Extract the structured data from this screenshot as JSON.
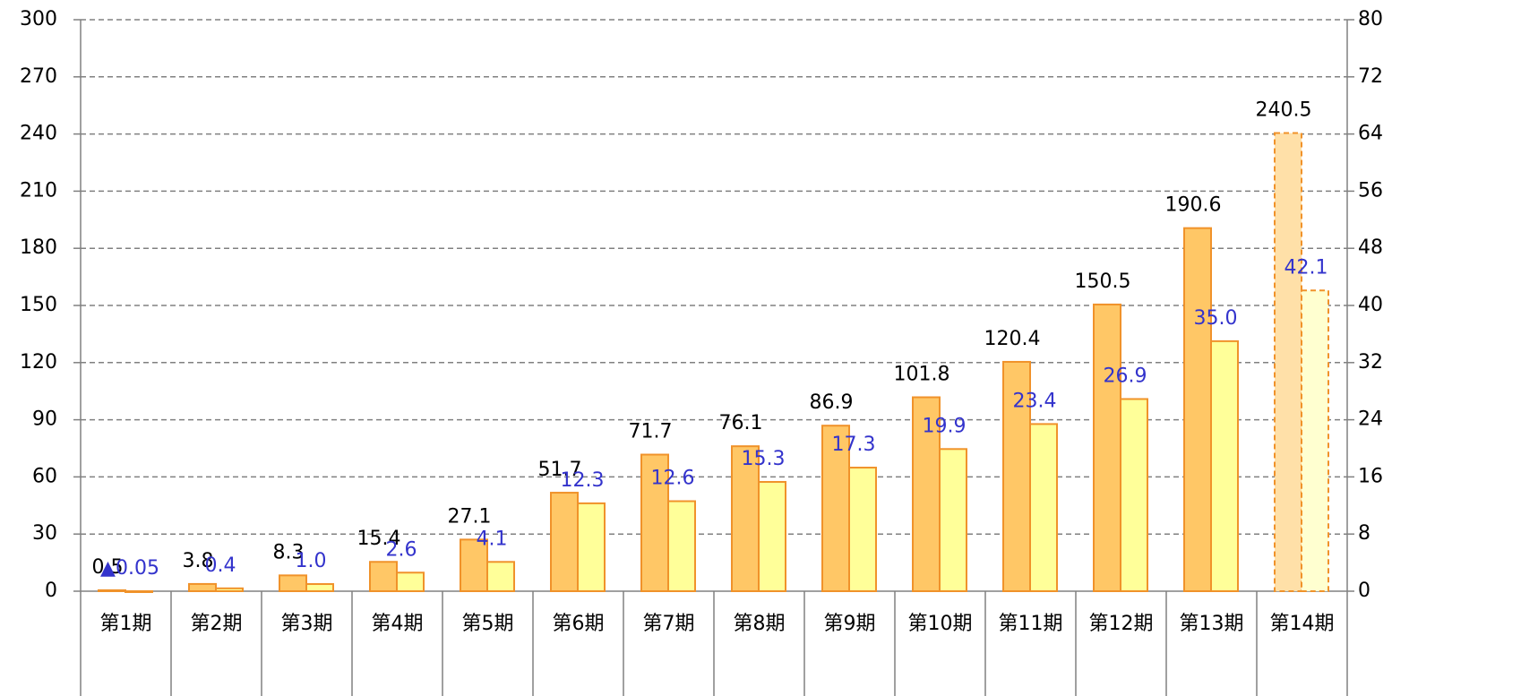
{
  "chart_data": {
    "type": "bar",
    "categories": [
      "第1期",
      "第2期",
      "第3期",
      "第4期",
      "第5期",
      "第6期",
      "第7期",
      "第8期",
      "第9期",
      "第10期",
      "第11期",
      "第12期",
      "第13期",
      "第14期"
    ],
    "series": [
      {
        "color": "#ffc766",
        "edge": "#f0922a",
        "label_color": "#000000",
        "colors": [
          "#ffc766",
          "#ffc766",
          "#ffc766",
          "#ffc766",
          "#ffc766",
          "#ffc766",
          "#ffc766",
          "#ffc766",
          "#ffc766",
          "#ffc766",
          "#ffc766",
          "#ffc766",
          "#ffc766",
          "#ffe0a8"
        ],
        "linestyles": [
          "solid",
          "solid",
          "solid",
          "solid",
          "solid",
          "solid",
          "solid",
          "solid",
          "solid",
          "solid",
          "solid",
          "solid",
          "solid",
          "dashed"
        ],
        "values": [
          0.5,
          3.8,
          8.3,
          15.4,
          27.1,
          51.7,
          71.7,
          76.1,
          86.9,
          101.8,
          120.4,
          150.5,
          190.6,
          240.5
        ]
      },
      {
        "color": "#ffff99",
        "edge": "#f0922a",
        "label_color": "#3333cc",
        "axis": "y2",
        "colors": [
          "#ffff99",
          "#ffff99",
          "#ffff99",
          "#ffff99",
          "#ffff99",
          "#ffff99",
          "#ffff99",
          "#ffff99",
          "#ffff99",
          "#ffff99",
          "#ffff99",
          "#ffff99",
          "#ffff99",
          "#ffffd0"
        ],
        "linestyles": [
          "solid",
          "solid",
          "solid",
          "solid",
          "solid",
          "solid",
          "solid",
          "solid",
          "solid",
          "solid",
          "solid",
          "solid",
          "solid",
          "dashed"
        ],
        "values": [
          -0.05,
          0.4,
          1.0,
          2.6,
          4.1,
          12.3,
          12.6,
          15.3,
          17.3,
          19.9,
          23.4,
          26.9,
          35.0,
          42.1
        ],
        "value_labels": [
          "▲0.05",
          "0.4",
          "1.0",
          "2.6",
          "4.1",
          "12.3",
          "12.6",
          "15.3",
          "17.3",
          "19.9",
          "23.4",
          "26.9",
          "35.0",
          "42.1"
        ]
      }
    ],
    "ylim": [
      0,
      300
    ],
    "yticks": [
      0,
      30,
      60,
      90,
      120,
      150,
      180,
      210,
      240,
      270,
      300
    ],
    "y2lim": [
      0,
      80
    ],
    "y2ticks": [
      0,
      8,
      16,
      24,
      32,
      40,
      48,
      56,
      64,
      72,
      80
    ],
    "grid": true
  }
}
